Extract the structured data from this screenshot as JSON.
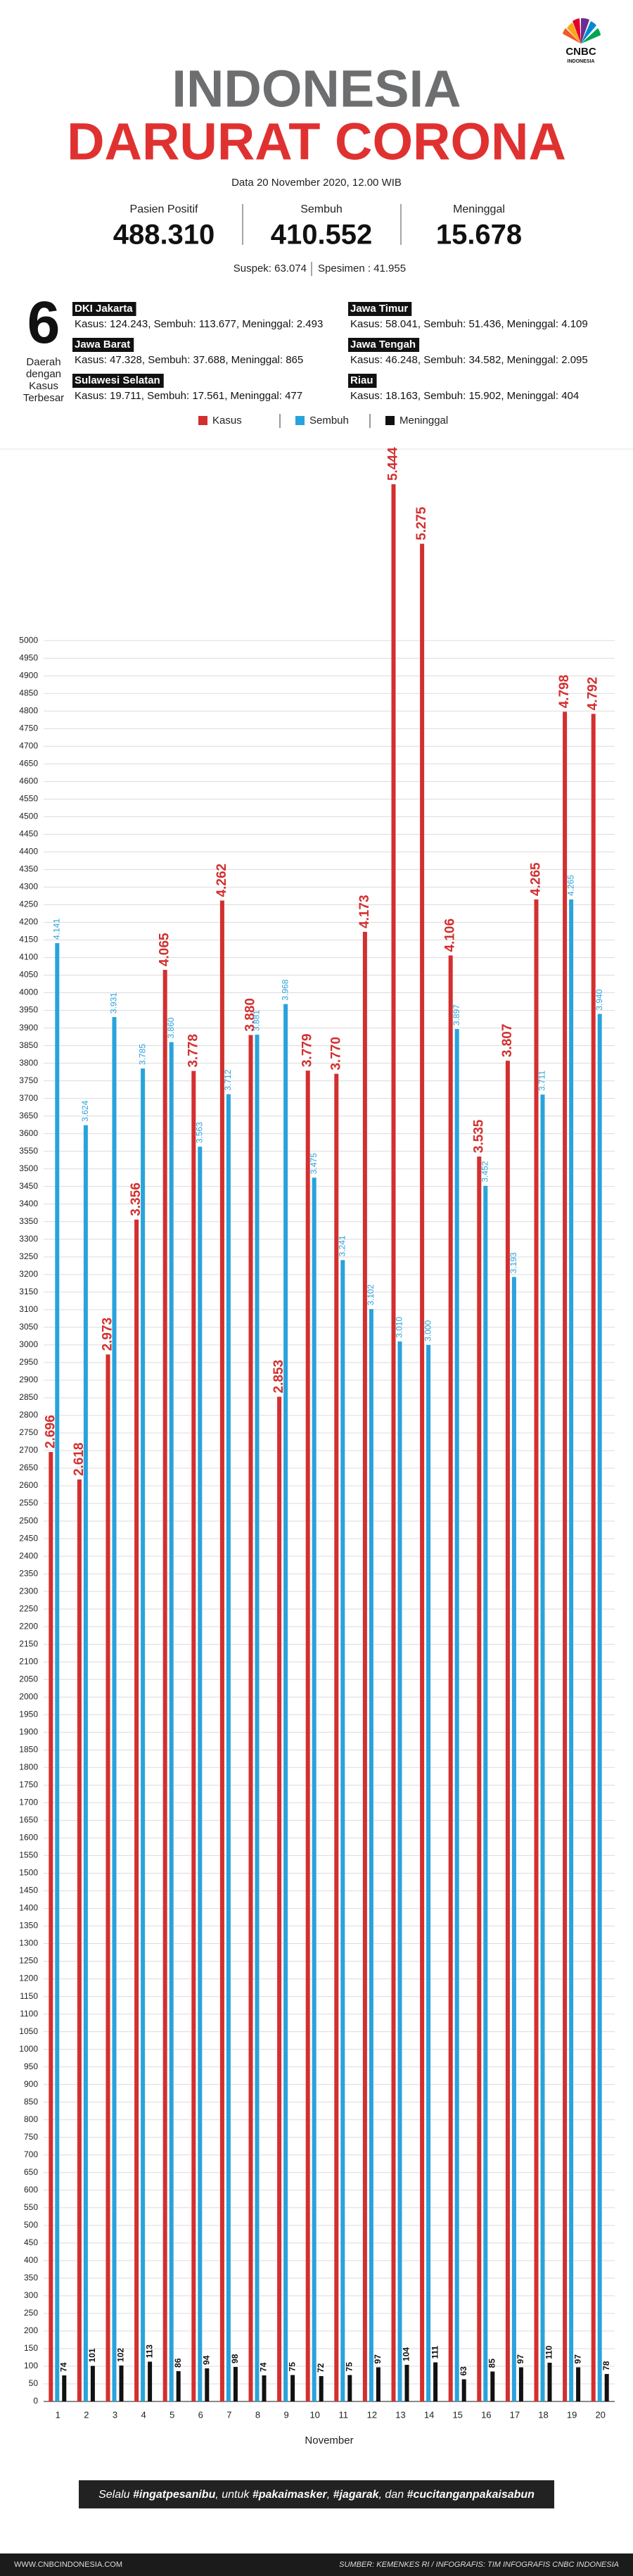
{
  "logo": {
    "name": "CNBC",
    "sub": "INDONESIA"
  },
  "header": {
    "title_1": "INDONESIA",
    "title_2": "DARURAT CORONA",
    "date": "Data 20 November 2020, 12.00 WIB"
  },
  "stats": [
    {
      "label": "Pasien Positif",
      "value": "488.310"
    },
    {
      "label": "Sembuh",
      "value": "410.552"
    },
    {
      "label": "Meninggal",
      "value": "15.678"
    }
  ],
  "extra": [
    "Suspek: 63.074",
    "Spesimen : 41.955"
  ],
  "regions_box": {
    "number": "6",
    "caption": [
      "Daerah",
      "dengan",
      "Kasus",
      "Terbesar"
    ]
  },
  "regions": [
    {
      "name": "DKI Jakarta",
      "detail": "Kasus: 124.243, Sembuh: 113.677, Meninggal: 2.493"
    },
    {
      "name": "Jawa Barat",
      "detail": "Kasus: 47.328, Sembuh: 37.688, Meninggal: 865"
    },
    {
      "name": "Sulawesi Selatan",
      "detail": "Kasus: 19.711, Sembuh: 17.561, Meninggal: 477"
    },
    {
      "name": "Jawa Timur",
      "detail": "Kasus: 58.041, Sembuh: 51.436, Meninggal: 4.109"
    },
    {
      "name": "Jawa Tengah",
      "detail": "Kasus: 46.248, Sembuh: 34.582, Meninggal: 2.095"
    },
    {
      "name": "Riau",
      "detail": "Kasus: 18.163, Sembuh: 15.902, Meninggal: 404"
    }
  ],
  "chart_data": {
    "type": "bar",
    "x_label": "November",
    "categories": [
      "1",
      "2",
      "3",
      "4",
      "5",
      "6",
      "7",
      "8",
      "9",
      "10",
      "11",
      "12",
      "13",
      "14",
      "15",
      "16",
      "17",
      "18",
      "19",
      "20"
    ],
    "series": [
      {
        "name": "Kasus",
        "color": "#d32f2f",
        "values": [
          2696,
          2618,
          2973,
          3356,
          4065,
          3778,
          4262,
          3880,
          2853,
          3779,
          3770,
          4173,
          5444,
          5275,
          4106,
          3535,
          3807,
          4265,
          4798,
          4792
        ],
        "value_labels": [
          "2.696",
          "2.618",
          "2.973",
          "3.356",
          "4.065",
          "3.778",
          "4.262",
          "3.880",
          "2.853",
          "3.779",
          "3.770",
          "4.173",
          "5.444",
          "5.275",
          "4.106",
          "3.535",
          "3.807",
          "4.265",
          "4.798",
          "4.792"
        ]
      },
      {
        "name": "Sembuh",
        "color": "#29a3dc",
        "values": [
          4141,
          3624,
          3931,
          3785,
          3860,
          3563,
          3712,
          3881,
          3968,
          3475,
          3241,
          3102,
          3010,
          3000,
          3897,
          3452,
          3193,
          3711,
          4265,
          3940
        ],
        "value_labels": [
          "4.141",
          "3.624",
          "3.931",
          "3.785",
          "3.860",
          "3.563",
          "3.712",
          "3.881",
          "3.968",
          "3.475",
          "3.241",
          "3.102",
          "3.010",
          "3.000",
          "3.897",
          "3.452",
          "3.193",
          "3.711",
          "4.265",
          "3.940"
        ]
      },
      {
        "name": "Meninggal",
        "color": "#111111",
        "values": [
          74,
          101,
          102,
          113,
          86,
          94,
          98,
          74,
          75,
          72,
          75,
          97,
          104,
          111,
          63,
          85,
          97,
          110,
          97,
          78
        ]
      }
    ],
    "ylim": [
      0,
      5500
    ],
    "yticks": [
      0,
      50,
      100,
      150,
      200,
      250,
      300,
      350,
      400,
      450,
      500,
      550,
      600,
      650,
      700,
      750,
      800,
      850,
      900,
      950,
      1000,
      1050,
      1100,
      1150,
      1200,
      1250,
      1300,
      1350,
      1400,
      1450,
      1500,
      1550,
      1600,
      1650,
      1700,
      1750,
      1800,
      1850,
      1900,
      1950,
      2000,
      2050,
      2100,
      2150,
      2200,
      2250,
      2300,
      2350,
      2400,
      2450,
      2500,
      2550,
      2600,
      2650,
      2700,
      2750,
      2800,
      2850,
      2900,
      2950,
      3000,
      3050,
      3100,
      3150,
      3200,
      3250,
      3300,
      3350,
      3400,
      3450,
      3500,
      3550,
      3600,
      3650,
      3700,
      3750,
      3800,
      3850,
      3900,
      3950,
      4000,
      4050,
      4100,
      4150,
      4200,
      4250,
      4300,
      4350,
      4400,
      4450,
      4500,
      4550,
      4600,
      4650,
      4700,
      4750,
      4800,
      4850,
      4900,
      4950,
      5000
    ],
    "grid": true
  },
  "slogan": [
    "Selalu ",
    "#ingatpesanibu",
    ", untuk ",
    "#pakaimasker",
    ", ",
    "#jagarak",
    ", dan ",
    "#cucitanganpakaisabun"
  ],
  "footer": {
    "left": "WWW.CNBCINDONESIA.COM",
    "right": "SUMBER: KEMENKES RI / INFOGRAFIS: TIM INFOGRAFIS CNBC INDONESIA"
  }
}
